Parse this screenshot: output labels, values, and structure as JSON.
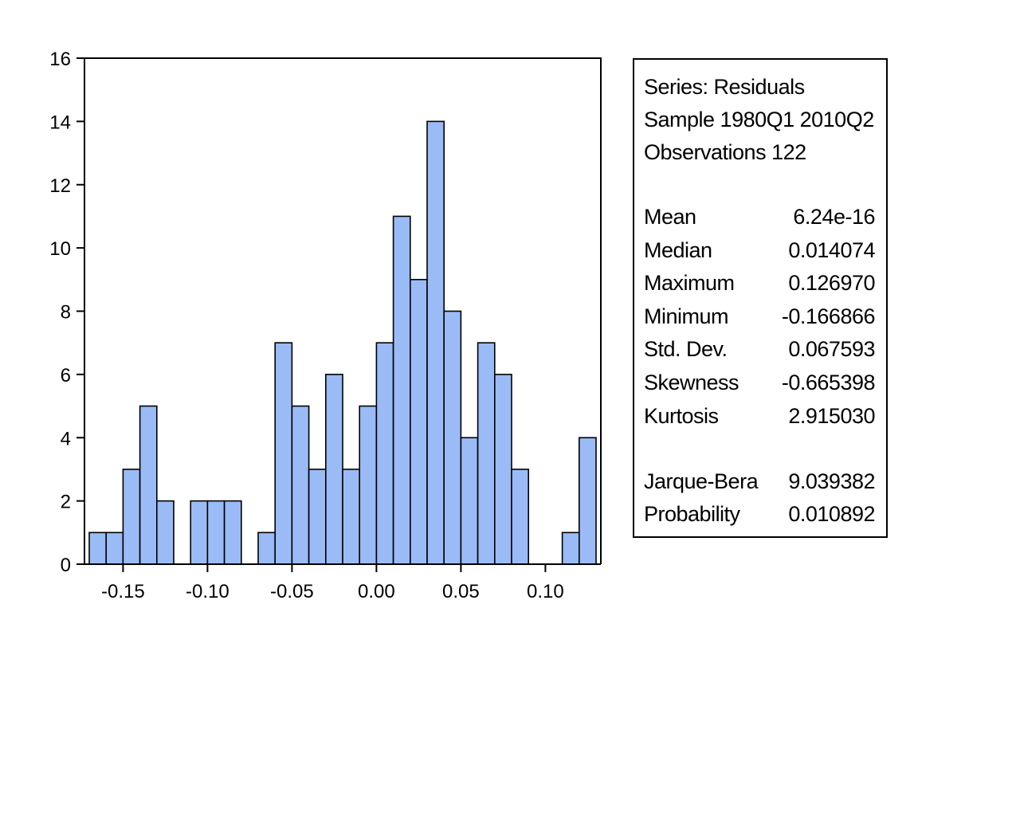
{
  "chart_data": {
    "type": "bar",
    "subtype": "histogram",
    "bin_width": 0.01,
    "bins": [
      {
        "center": -0.165,
        "count": 1
      },
      {
        "center": -0.155,
        "count": 1
      },
      {
        "center": -0.145,
        "count": 3
      },
      {
        "center": -0.135,
        "count": 5
      },
      {
        "center": -0.125,
        "count": 2
      },
      {
        "center": -0.105,
        "count": 2
      },
      {
        "center": -0.095,
        "count": 2
      },
      {
        "center": -0.085,
        "count": 2
      },
      {
        "center": -0.065,
        "count": 1
      },
      {
        "center": -0.055,
        "count": 7
      },
      {
        "center": -0.045,
        "count": 5
      },
      {
        "center": -0.035,
        "count": 3
      },
      {
        "center": -0.025,
        "count": 6
      },
      {
        "center": -0.015,
        "count": 3
      },
      {
        "center": -0.005,
        "count": 5
      },
      {
        "center": 0.005,
        "count": 7
      },
      {
        "center": 0.015,
        "count": 11
      },
      {
        "center": 0.025,
        "count": 9
      },
      {
        "center": 0.035,
        "count": 14
      },
      {
        "center": 0.045,
        "count": 8
      },
      {
        "center": 0.055,
        "count": 4
      },
      {
        "center": 0.065,
        "count": 7
      },
      {
        "center": 0.075,
        "count": 6
      },
      {
        "center": 0.085,
        "count": 3
      },
      {
        "center": 0.115,
        "count": 1
      },
      {
        "center": 0.125,
        "count": 4
      }
    ],
    "xlim": [
      -0.17,
      0.13
    ],
    "ylim": [
      0,
      16
    ],
    "x_ticks": [
      "-0.15",
      "-0.10",
      "-0.05",
      "0.00",
      "0.05",
      "0.10"
    ],
    "x_tick_values": [
      -0.15,
      -0.1,
      -0.05,
      0.0,
      0.05,
      0.1
    ],
    "y_ticks": [
      "0",
      "2",
      "4",
      "6",
      "8",
      "10",
      "12",
      "14",
      "16"
    ],
    "y_tick_values": [
      0,
      2,
      4,
      6,
      8,
      10,
      12,
      14,
      16
    ],
    "xlabel": "",
    "ylabel": "",
    "bar_color": "#9ABBF6",
    "bar_edge_color": "#000000",
    "grid": false
  },
  "stats_panel": {
    "header": [
      "Series: Residuals",
      "Sample 1980Q1 2010Q2",
      "Observations 122"
    ],
    "rows": [
      {
        "label": "Mean",
        "value": "6.24e-16"
      },
      {
        "label": "Median",
        "value": "0.014074"
      },
      {
        "label": "Maximum",
        "value": "0.126970"
      },
      {
        "label": "Minimum",
        "value": "-0.166866"
      },
      {
        "label": "Std. Dev.",
        "value": "0.067593"
      },
      {
        "label": "Skewness",
        "value": "-0.665398"
      },
      {
        "label": "Kurtosis",
        "value": "2.915030"
      },
      {
        "label": "Jarque-Bera",
        "value": "9.039382"
      },
      {
        "label": "Probability",
        "value": "0.010892"
      }
    ]
  }
}
